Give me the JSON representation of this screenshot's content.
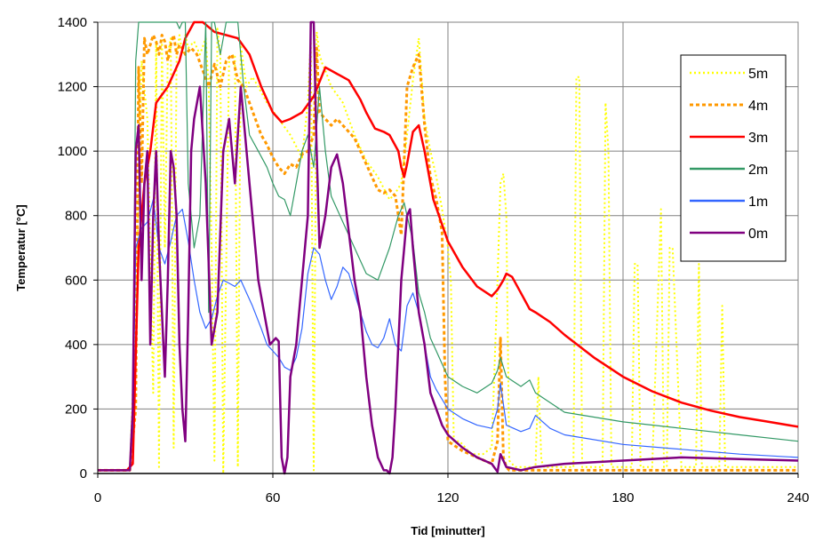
{
  "chart_data": {
    "type": "line",
    "title": "",
    "xlabel": "Tid [minutter]",
    "ylabel": "Temperatur [°C]",
    "xlim": [
      0,
      240
    ],
    "ylim": [
      0,
      1400
    ],
    "x_ticks": [
      "0",
      "60",
      "120",
      "180",
      "240"
    ],
    "y_ticks": [
      "0",
      "200",
      "400",
      "600",
      "800",
      "1000",
      "1200",
      "1400"
    ],
    "grid": true,
    "legend_position": "top-right",
    "series": [
      {
        "name": "5m",
        "color": "#FFFF00",
        "style": "dotted",
        "x": [
          0,
          11,
          13,
          15,
          17,
          19,
          20,
          21,
          22,
          23,
          24,
          25,
          26,
          27,
          28,
          29,
          30,
          31,
          33,
          35,
          37,
          38,
          39,
          40,
          41,
          42,
          43,
          45,
          47,
          48,
          49,
          50,
          51,
          53,
          55,
          58,
          62,
          66,
          70,
          72,
          73,
          74,
          75,
          76,
          77,
          78,
          80,
          84,
          88,
          92,
          96,
          100,
          102,
          104,
          106,
          108,
          110,
          112,
          114,
          116,
          118,
          120,
          121,
          122,
          124,
          128,
          132,
          135,
          137,
          138,
          139,
          140,
          141,
          142,
          143,
          150,
          151,
          152,
          153,
          160,
          163,
          164,
          165,
          166,
          167,
          170,
          173,
          174,
          175,
          176,
          177,
          178,
          180,
          183,
          184,
          185,
          186,
          187,
          190,
          193,
          194,
          195,
          196,
          197,
          200,
          204,
          205,
          206,
          207,
          210,
          213,
          214,
          215,
          216,
          220,
          230,
          240
        ],
        "y": [
          10,
          10,
          500,
          1280,
          1100,
          250,
          1340,
          20,
          1350,
          700,
          1300,
          1350,
          80,
          1300,
          1360,
          1300,
          1360,
          1320,
          1340,
          1300,
          1350,
          1200,
          700,
          40,
          1380,
          1300,
          0,
          1290,
          1300,
          20,
          1330,
          1260,
          1200,
          1230,
          1200,
          1150,
          1100,
          1050,
          980,
          1150,
          1350,
          10,
          1370,
          1300,
          1270,
          1250,
          1200,
          1150,
          1050,
          970,
          920,
          850,
          870,
          900,
          1050,
          1220,
          1350,
          1100,
          1000,
          920,
          820,
          700,
          600,
          100,
          100,
          60,
          60,
          80,
          600,
          900,
          930,
          800,
          40,
          30,
          20,
          20,
          300,
          40,
          20,
          20,
          20,
          1230,
          1230,
          20,
          20,
          20,
          20,
          1150,
          1000,
          20,
          20,
          20,
          20,
          20,
          650,
          650,
          20,
          20,
          20,
          820,
          20,
          20,
          700,
          700,
          20,
          20,
          20,
          650,
          20,
          20,
          20,
          520,
          20,
          20,
          20,
          20,
          20
        ]
      },
      {
        "name": "4m",
        "color": "#FF9900",
        "style": "dashed",
        "x": [
          0,
          11,
          13,
          14,
          15,
          16,
          17,
          18,
          19,
          20,
          21,
          22,
          23,
          24,
          25,
          26,
          27,
          28,
          29,
          30,
          32,
          34,
          36,
          38,
          40,
          42,
          44,
          46,
          48,
          50,
          52,
          54,
          56,
          58,
          60,
          62,
          64,
          66,
          68,
          70,
          72,
          74,
          75,
          76,
          78,
          80,
          82,
          84,
          86,
          88,
          90,
          92,
          94,
          96,
          98,
          100,
          102,
          104,
          106,
          108,
          110,
          112,
          114,
          116,
          118,
          119,
          120,
          125,
          130,
          135,
          137,
          138,
          139,
          140,
          141,
          142,
          150,
          160,
          180,
          200,
          220,
          240
        ],
        "y": [
          10,
          10,
          200,
          1260,
          900,
          1350,
          1300,
          1330,
          1360,
          1340,
          1300,
          1360,
          1340,
          1280,
          1330,
          1360,
          1300,
          1330,
          1320,
          1300,
          1320,
          1300,
          1250,
          1200,
          1270,
          1200,
          1280,
          1300,
          1220,
          1200,
          1150,
          1100,
          1050,
          1020,
          980,
          950,
          930,
          960,
          950,
          990,
          1000,
          1050,
          1320,
          1120,
          1100,
          1080,
          1100,
          1080,
          1060,
          1040,
          1000,
          960,
          920,
          880,
          870,
          880,
          860,
          740,
          1200,
          1260,
          1300,
          1080,
          920,
          850,
          750,
          300,
          100,
          70,
          50,
          30,
          100,
          420,
          50,
          20,
          10,
          10,
          10,
          10,
          10,
          10,
          10,
          10
        ]
      },
      {
        "name": "3m",
        "color": "#FF0000",
        "style": "solid",
        "x": [
          0,
          10,
          12,
          14,
          16,
          18,
          20,
          24,
          28,
          30,
          33,
          36,
          40,
          44,
          48,
          52,
          56,
          60,
          63,
          66,
          70,
          74,
          78,
          82,
          86,
          90,
          92,
          95,
          98,
          100,
          103,
          104,
          105,
          106,
          107,
          108,
          110,
          112,
          115,
          120,
          125,
          130,
          135,
          137,
          139,
          140,
          142,
          145,
          148,
          150,
          155,
          160,
          170,
          180,
          190,
          200,
          210,
          220,
          230,
          240
        ],
        "y": [
          10,
          10,
          30,
          700,
          900,
          1000,
          1150,
          1200,
          1280,
          1350,
          1400,
          1400,
          1370,
          1360,
          1350,
          1300,
          1200,
          1120,
          1090,
          1100,
          1120,
          1170,
          1260,
          1240,
          1220,
          1160,
          1120,
          1070,
          1060,
          1050,
          1000,
          950,
          920,
          960,
          1010,
          1060,
          1080,
          1000,
          850,
          720,
          640,
          580,
          550,
          570,
          600,
          620,
          610,
          560,
          510,
          500,
          470,
          430,
          360,
          300,
          255,
          220,
          195,
          175,
          160,
          145
        ]
      },
      {
        "name": "2m",
        "color": "#339966",
        "style": "solid",
        "x": [
          0,
          11,
          12,
          13,
          14,
          15,
          16,
          17,
          18,
          19,
          20,
          22,
          24,
          26,
          27,
          28,
          29,
          30,
          31,
          33,
          35,
          37,
          38,
          39,
          40,
          42,
          44,
          46,
          48,
          50,
          52,
          55,
          58,
          60,
          62,
          64,
          66,
          68,
          70,
          72,
          74,
          76,
          78,
          80,
          84,
          88,
          92,
          96,
          100,
          103,
          105,
          106,
          108,
          110,
          112,
          114,
          116,
          118,
          120,
          125,
          130,
          135,
          137,
          138,
          140,
          145,
          148,
          150,
          160,
          180,
          200,
          220,
          240
        ],
        "y": [
          10,
          10,
          150,
          1280,
          1400,
          1400,
          1400,
          1400,
          1400,
          1400,
          1400,
          1400,
          1400,
          1400,
          1400,
          1380,
          1400,
          1400,
          900,
          700,
          800,
          1400,
          500,
          1400,
          1400,
          1300,
          1400,
          1400,
          1400,
          1200,
          1050,
          1000,
          950,
          900,
          860,
          850,
          800,
          900,
          1000,
          1050,
          950,
          1200,
          1000,
          860,
          780,
          700,
          620,
          600,
          700,
          800,
          840,
          800,
          720,
          560,
          500,
          420,
          380,
          340,
          300,
          270,
          250,
          280,
          320,
          360,
          300,
          270,
          290,
          250,
          190,
          160,
          140,
          120,
          100
        ]
      },
      {
        "name": "1m",
        "color": "#3366FF",
        "style": "solid",
        "x": [
          0,
          11,
          12,
          13,
          15,
          17,
          19,
          21,
          23,
          25,
          27,
          29,
          31,
          33,
          35,
          37,
          39,
          41,
          43,
          45,
          47,
          49,
          51,
          53,
          56,
          58,
          60,
          62,
          64,
          66,
          68,
          70,
          72,
          74,
          76,
          78,
          80,
          82,
          84,
          86,
          88,
          90,
          92,
          94,
          96,
          98,
          100,
          102,
          104,
          106,
          108,
          110,
          112,
          114,
          116,
          118,
          120,
          125,
          130,
          135,
          137,
          138,
          140,
          145,
          148,
          150,
          155,
          160,
          180,
          200,
          220,
          240
        ],
        "y": [
          10,
          10,
          150,
          700,
          760,
          780,
          850,
          700,
          650,
          720,
          800,
          820,
          720,
          600,
          500,
          450,
          480,
          550,
          600,
          590,
          580,
          600,
          560,
          520,
          450,
          400,
          380,
          360,
          330,
          320,
          360,
          450,
          620,
          700,
          680,
          600,
          540,
          580,
          640,
          620,
          560,
          500,
          440,
          400,
          390,
          420,
          480,
          400,
          380,
          520,
          560,
          500,
          400,
          300,
          260,
          230,
          200,
          170,
          150,
          140,
          200,
          280,
          150,
          130,
          140,
          180,
          140,
          120,
          90,
          75,
          60,
          50
        ]
      },
      {
        "name": "0m",
        "color": "#800080",
        "style": "solid",
        "x": [
          0,
          11,
          12,
          13,
          14,
          15,
          16,
          17,
          18,
          19,
          20,
          21,
          22,
          23,
          24,
          25,
          26,
          27,
          28,
          29,
          30,
          31,
          32,
          33,
          35,
          37,
          39,
          41,
          43,
          45,
          47,
          49,
          51,
          53,
          55,
          57,
          59,
          61,
          62,
          63,
          64,
          65,
          66,
          68,
          70,
          72,
          73,
          74,
          75,
          76,
          78,
          80,
          82,
          84,
          86,
          88,
          90,
          92,
          94,
          96,
          98,
          99,
          100,
          101,
          102,
          103,
          104,
          105,
          106,
          107,
          108,
          110,
          112,
          114,
          116,
          118,
          120,
          125,
          130,
          135,
          137,
          138,
          140,
          145,
          150,
          160,
          180,
          200,
          220,
          240
        ],
        "y": [
          10,
          10,
          200,
          1000,
          1080,
          600,
          900,
          1000,
          400,
          800,
          1000,
          700,
          500,
          300,
          600,
          1000,
          950,
          800,
          400,
          200,
          100,
          500,
          1000,
          1100,
          1200,
          900,
          400,
          500,
          1000,
          1100,
          900,
          1200,
          1000,
          800,
          600,
          500,
          400,
          420,
          410,
          50,
          0,
          50,
          300,
          400,
          600,
          800,
          1400,
          1400,
          1000,
          700,
          800,
          950,
          990,
          900,
          750,
          600,
          500,
          300,
          150,
          50,
          10,
          10,
          0,
          50,
          200,
          400,
          600,
          700,
          800,
          820,
          700,
          500,
          400,
          250,
          200,
          150,
          120,
          80,
          50,
          30,
          5,
          60,
          20,
          10,
          20,
          30,
          40,
          50,
          45,
          40
        ]
      }
    ]
  }
}
